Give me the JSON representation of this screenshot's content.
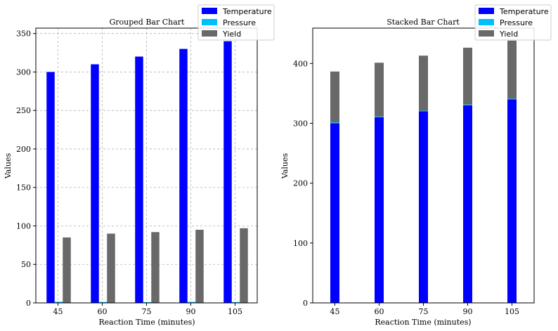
{
  "chart_data": [
    {
      "type": "bar",
      "mode": "grouped",
      "title": "Grouped Bar Chart",
      "xlabel": "Reaction Time (minutes)",
      "ylabel": "Values",
      "categories": [
        "45",
        "60",
        "75",
        "90",
        "105"
      ],
      "series": [
        {
          "name": "Temperature",
          "color": "#0000ff",
          "values": [
            300,
            310,
            320,
            330,
            340
          ]
        },
        {
          "name": "Pressure",
          "color": "#00bfff",
          "values": [
            1.5,
            1.2,
            1.0,
            1.3,
            1.1
          ]
        },
        {
          "name": "Yield",
          "color": "#696969",
          "values": [
            85,
            90,
            92,
            95,
            97
          ]
        }
      ],
      "ylim": [
        0,
        357
      ],
      "yticks": [
        0,
        50,
        100,
        150,
        200,
        250,
        300,
        350
      ],
      "grid": true,
      "legend": "top-right"
    },
    {
      "type": "bar",
      "mode": "stacked",
      "title": "Stacked Bar Chart",
      "xlabel": "Reaction Time (minutes)",
      "ylabel": "Values",
      "categories": [
        "45",
        "60",
        "75",
        "90",
        "105"
      ],
      "series": [
        {
          "name": "Temperature",
          "color": "#0000ff",
          "values": [
            300,
            310,
            320,
            330,
            340
          ]
        },
        {
          "name": "Pressure",
          "color": "#00bfff",
          "values": [
            1.5,
            1.2,
            1.0,
            1.3,
            1.1
          ]
        },
        {
          "name": "Yield",
          "color": "#696969",
          "values": [
            85,
            90,
            92,
            95,
            97
          ]
        }
      ],
      "ylim": [
        0,
        459
      ],
      "yticks": [
        0,
        100,
        200,
        300,
        400
      ],
      "grid": false,
      "legend": "top-right"
    }
  ]
}
